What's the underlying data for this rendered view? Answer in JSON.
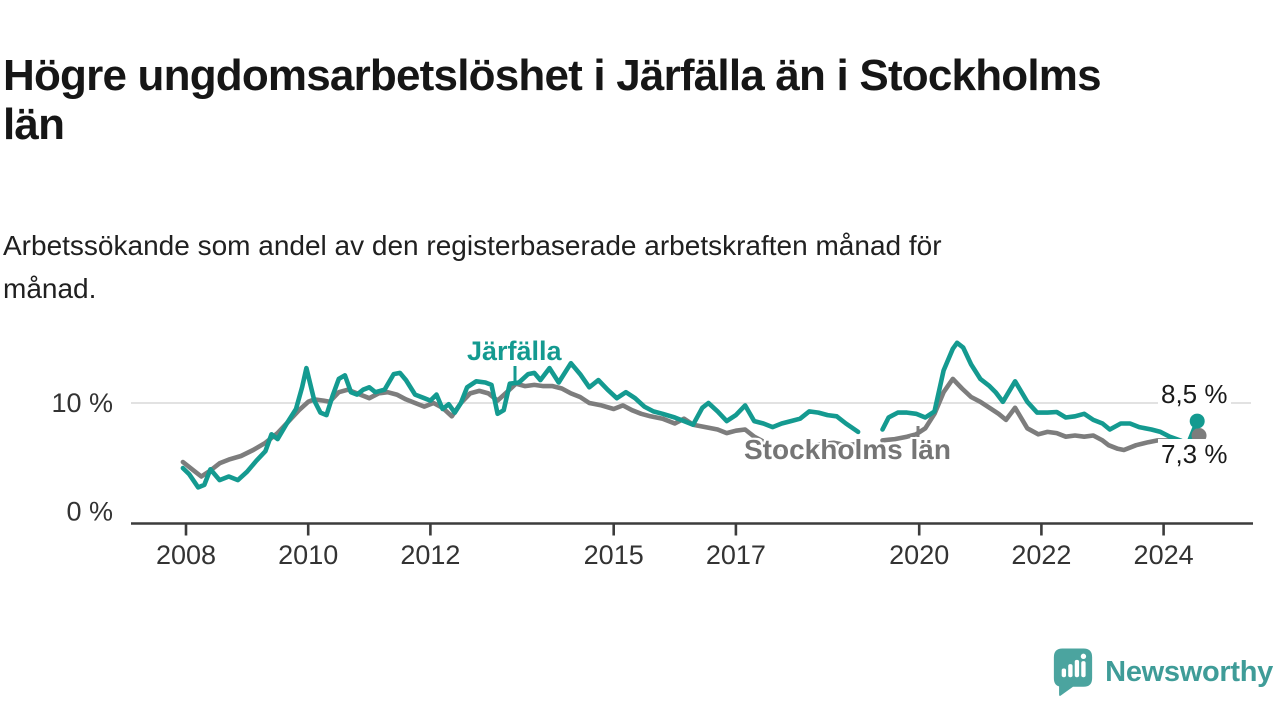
{
  "header": {
    "title_lines": [
      "Högre ungdomsarbetslöshet i Järfälla än i Stockholms",
      "län"
    ],
    "subtitle_lines": [
      "Arbetssökande som andel av den registerbaserade arbetskraften månad för",
      "månad."
    ]
  },
  "branding": {
    "logo_text": "Newsworthy",
    "icon": "newsworthy-speech-bubble-bar-chart-icon",
    "icon_color": "#4ba49f",
    "text_color": "#3f9c98"
  },
  "colors": {
    "axis": "#3c3c3c",
    "gridline": "#d9d9d9",
    "tick_text": "#333333",
    "value_text": "#1a1a1a"
  },
  "chart_data": {
    "type": "line",
    "title": "Högre ungdomsarbetslöshet i Järfälla än i Stockholms län",
    "subtitle": "Arbetssökande som andel av den registerbaserade arbetskraften månad för månad.",
    "unit": "%",
    "xlim": [
      2007.6,
      2025.2
    ],
    "ylim": [
      0,
      16.5
    ],
    "grid_y": [
      10
    ],
    "legend_position": "inline-labels",
    "x_ticks": [
      {
        "v": 2008,
        "label": "2008"
      },
      {
        "v": 2010,
        "label": "2010"
      },
      {
        "v": 2012,
        "label": "2012"
      },
      {
        "v": 2015,
        "label": "2015"
      },
      {
        "v": 2017,
        "label": "2017"
      },
      {
        "v": 2020,
        "label": "2020"
      },
      {
        "v": 2022,
        "label": "2022"
      },
      {
        "v": 2024,
        "label": "2024"
      }
    ],
    "y_ticks": [
      {
        "v": 10,
        "label": "10 %"
      },
      {
        "v": 0,
        "label": "0 %"
      }
    ],
    "series": [
      {
        "id": "stockholms-lan",
        "name": "Stockholms län",
        "color": "#7d7d7d",
        "end_label": "7,3 %",
        "end_value": 7.3,
        "segments": [
          [
            [
              2007.95,
              5.1
            ],
            [
              2008.1,
              4.5
            ],
            [
              2008.25,
              3.9
            ],
            [
              2008.4,
              4.4
            ],
            [
              2008.55,
              5.0
            ],
            [
              2008.7,
              5.3
            ],
            [
              2008.9,
              5.6
            ],
            [
              2009.1,
              6.1
            ],
            [
              2009.3,
              6.7
            ],
            [
              2009.5,
              7.5
            ],
            [
              2009.7,
              8.6
            ],
            [
              2009.85,
              9.4
            ],
            [
              2010.0,
              10.1
            ],
            [
              2010.1,
              10.3
            ],
            [
              2010.25,
              10.2
            ],
            [
              2010.35,
              10.1
            ],
            [
              2010.5,
              10.9
            ],
            [
              2010.65,
              11.1
            ],
            [
              2010.8,
              10.8
            ],
            [
              2011.0,
              10.4
            ],
            [
              2011.15,
              10.8
            ],
            [
              2011.3,
              10.9
            ],
            [
              2011.45,
              10.7
            ],
            [
              2011.6,
              10.3
            ],
            [
              2011.75,
              10.0
            ],
            [
              2011.9,
              9.7
            ],
            [
              2012.05,
              10.0
            ],
            [
              2012.2,
              9.6
            ],
            [
              2012.35,
              8.9
            ],
            [
              2012.5,
              10.0
            ],
            [
              2012.65,
              10.8
            ],
            [
              2012.8,
              11.0
            ],
            [
              2012.95,
              10.8
            ],
            [
              2013.1,
              10.2
            ],
            [
              2013.25,
              10.9
            ],
            [
              2013.4,
              11.6
            ],
            [
              2013.55,
              11.4
            ],
            [
              2013.7,
              11.5
            ],
            [
              2013.85,
              11.4
            ],
            [
              2014.0,
              11.4
            ],
            [
              2014.15,
              11.2
            ],
            [
              2014.3,
              10.8
            ],
            [
              2014.45,
              10.5
            ],
            [
              2014.6,
              10.0
            ],
            [
              2014.8,
              9.8
            ],
            [
              2015.0,
              9.5
            ],
            [
              2015.15,
              9.8
            ],
            [
              2015.3,
              9.4
            ],
            [
              2015.45,
              9.1
            ],
            [
              2015.6,
              8.9
            ],
            [
              2015.8,
              8.7
            ],
            [
              2016.0,
              8.3
            ],
            [
              2016.15,
              8.7
            ],
            [
              2016.3,
              8.2
            ],
            [
              2016.5,
              8.0
            ],
            [
              2016.7,
              7.8
            ],
            [
              2016.85,
              7.5
            ],
            [
              2017.0,
              7.7
            ],
            [
              2017.15,
              7.8
            ],
            [
              2017.3,
              7.2
            ],
            [
              2017.45,
              6.8
            ],
            [
              2017.6,
              6.4
            ],
            [
              2017.8,
              6.2
            ],
            [
              2018.0,
              6.3
            ],
            [
              2018.2,
              6.4
            ],
            [
              2018.4,
              6.6
            ],
            [
              2018.6,
              6.7
            ],
            [
              2018.8,
              6.5
            ],
            [
              2019.0,
              6.6
            ]
          ],
          [
            [
              2019.4,
              6.9
            ],
            [
              2019.6,
              7.0
            ],
            [
              2019.8,
              7.2
            ],
            [
              2019.95,
              7.4
            ],
            [
              2020.1,
              7.9
            ],
            [
              2020.25,
              9.1
            ],
            [
              2020.4,
              10.9
            ],
            [
              2020.55,
              12.0
            ],
            [
              2020.7,
              11.2
            ],
            [
              2020.85,
              10.5
            ],
            [
              2021.0,
              10.1
            ],
            [
              2021.15,
              9.6
            ],
            [
              2021.3,
              9.1
            ],
            [
              2021.42,
              8.6
            ],
            [
              2021.57,
              9.6
            ],
            [
              2021.77,
              7.9
            ],
            [
              2021.95,
              7.4
            ],
            [
              2022.1,
              7.6
            ],
            [
              2022.25,
              7.5
            ],
            [
              2022.4,
              7.2
            ],
            [
              2022.55,
              7.3
            ],
            [
              2022.7,
              7.2
            ],
            [
              2022.85,
              7.3
            ],
            [
              2023.0,
              6.9
            ],
            [
              2023.1,
              6.5
            ],
            [
              2023.25,
              6.2
            ],
            [
              2023.35,
              6.1
            ],
            [
              2023.55,
              6.5
            ],
            [
              2023.75,
              6.75
            ],
            [
              2023.9,
              6.9
            ],
            [
              2024.1,
              6.9
            ],
            [
              2024.3,
              6.7
            ],
            [
              2024.45,
              6.8
            ],
            [
              2024.58,
              7.3
            ]
          ]
        ]
      },
      {
        "id": "jarfalla",
        "name": "Järfälla",
        "color": "#149a90",
        "end_label": "8,5 %",
        "end_value": 8.5,
        "segments": [
          [
            [
              2007.95,
              4.6
            ],
            [
              2008.05,
              4.1
            ],
            [
              2008.2,
              3.0
            ],
            [
              2008.3,
              3.2
            ],
            [
              2008.4,
              4.5
            ],
            [
              2008.55,
              3.6
            ],
            [
              2008.7,
              3.9
            ],
            [
              2008.85,
              3.6
            ],
            [
              2009.0,
              4.3
            ],
            [
              2009.15,
              5.2
            ],
            [
              2009.3,
              6.0
            ],
            [
              2009.4,
              7.4
            ],
            [
              2009.5,
              7.0
            ],
            [
              2009.65,
              8.3
            ],
            [
              2009.8,
              9.5
            ],
            [
              2009.9,
              11.3
            ],
            [
              2009.97,
              12.9
            ],
            [
              2010.1,
              10.2
            ],
            [
              2010.2,
              9.2
            ],
            [
              2010.3,
              9.0
            ],
            [
              2010.4,
              10.6
            ],
            [
              2010.5,
              12.0
            ],
            [
              2010.6,
              12.3
            ],
            [
              2010.7,
              10.9
            ],
            [
              2010.8,
              10.7
            ],
            [
              2010.9,
              11.1
            ],
            [
              2011.0,
              11.3
            ],
            [
              2011.1,
              10.9
            ],
            [
              2011.25,
              11.1
            ],
            [
              2011.4,
              12.4
            ],
            [
              2011.5,
              12.5
            ],
            [
              2011.6,
              11.9
            ],
            [
              2011.75,
              10.7
            ],
            [
              2011.9,
              10.4
            ],
            [
              2012.0,
              10.2
            ],
            [
              2012.1,
              10.7
            ],
            [
              2012.2,
              9.5
            ],
            [
              2012.3,
              9.9
            ],
            [
              2012.4,
              9.2
            ],
            [
              2012.5,
              10.0
            ],
            [
              2012.6,
              11.3
            ],
            [
              2012.75,
              11.8
            ],
            [
              2012.9,
              11.7
            ],
            [
              2013.0,
              11.5
            ],
            [
              2013.1,
              9.1
            ],
            [
              2013.2,
              9.4
            ],
            [
              2013.3,
              11.6
            ],
            [
              2013.45,
              11.7
            ],
            [
              2013.6,
              12.4
            ],
            [
              2013.7,
              12.5
            ],
            [
              2013.8,
              11.9
            ],
            [
              2013.95,
              12.9
            ],
            [
              2014.1,
              11.7
            ],
            [
              2014.3,
              13.3
            ],
            [
              2014.45,
              12.4
            ],
            [
              2014.6,
              11.3
            ],
            [
              2014.75,
              11.9
            ],
            [
              2014.9,
              11.1
            ],
            [
              2015.05,
              10.4
            ],
            [
              2015.2,
              10.9
            ],
            [
              2015.35,
              10.4
            ],
            [
              2015.5,
              9.7
            ],
            [
              2015.65,
              9.3
            ],
            [
              2015.8,
              9.1
            ],
            [
              2016.0,
              8.8
            ],
            [
              2016.15,
              8.5
            ],
            [
              2016.3,
              8.2
            ],
            [
              2016.45,
              9.6
            ],
            [
              2016.55,
              10.0
            ],
            [
              2016.7,
              9.3
            ],
            [
              2016.85,
              8.5
            ],
            [
              2017.0,
              9.0
            ],
            [
              2017.15,
              9.8
            ],
            [
              2017.3,
              8.5
            ],
            [
              2017.45,
              8.3
            ],
            [
              2017.6,
              8.0
            ],
            [
              2017.75,
              8.3
            ],
            [
              2017.9,
              8.5
            ],
            [
              2018.05,
              8.7
            ],
            [
              2018.2,
              9.3
            ],
            [
              2018.35,
              9.2
            ],
            [
              2018.5,
              9.0
            ],
            [
              2018.65,
              8.9
            ],
            [
              2018.8,
              8.3
            ],
            [
              2019.0,
              7.6
            ]
          ],
          [
            [
              2019.4,
              7.8
            ],
            [
              2019.5,
              8.8
            ],
            [
              2019.65,
              9.2
            ],
            [
              2019.8,
              9.2
            ],
            [
              2019.95,
              9.1
            ],
            [
              2020.1,
              8.8
            ],
            [
              2020.25,
              9.3
            ],
            [
              2020.4,
              12.7
            ],
            [
              2020.55,
              14.5
            ],
            [
              2020.62,
              15.0
            ],
            [
              2020.72,
              14.6
            ],
            [
              2020.85,
              13.2
            ],
            [
              2021.0,
              12.0
            ],
            [
              2021.15,
              11.4
            ],
            [
              2021.25,
              10.9
            ],
            [
              2021.37,
              10.1
            ],
            [
              2021.57,
              11.8
            ],
            [
              2021.77,
              10.1
            ],
            [
              2021.93,
              9.2
            ],
            [
              2022.1,
              9.2
            ],
            [
              2022.25,
              9.25
            ],
            [
              2022.4,
              8.8
            ],
            [
              2022.55,
              8.9
            ],
            [
              2022.7,
              9.1
            ],
            [
              2022.85,
              8.6
            ],
            [
              2023.0,
              8.3
            ],
            [
              2023.12,
              7.8
            ],
            [
              2023.3,
              8.3
            ],
            [
              2023.45,
              8.3
            ],
            [
              2023.6,
              8.0
            ],
            [
              2023.8,
              7.8
            ],
            [
              2023.95,
              7.6
            ],
            [
              2024.1,
              7.2
            ],
            [
              2024.27,
              6.9
            ],
            [
              2024.4,
              6.6
            ],
            [
              2024.55,
              8.5
            ]
          ]
        ]
      }
    ]
  }
}
